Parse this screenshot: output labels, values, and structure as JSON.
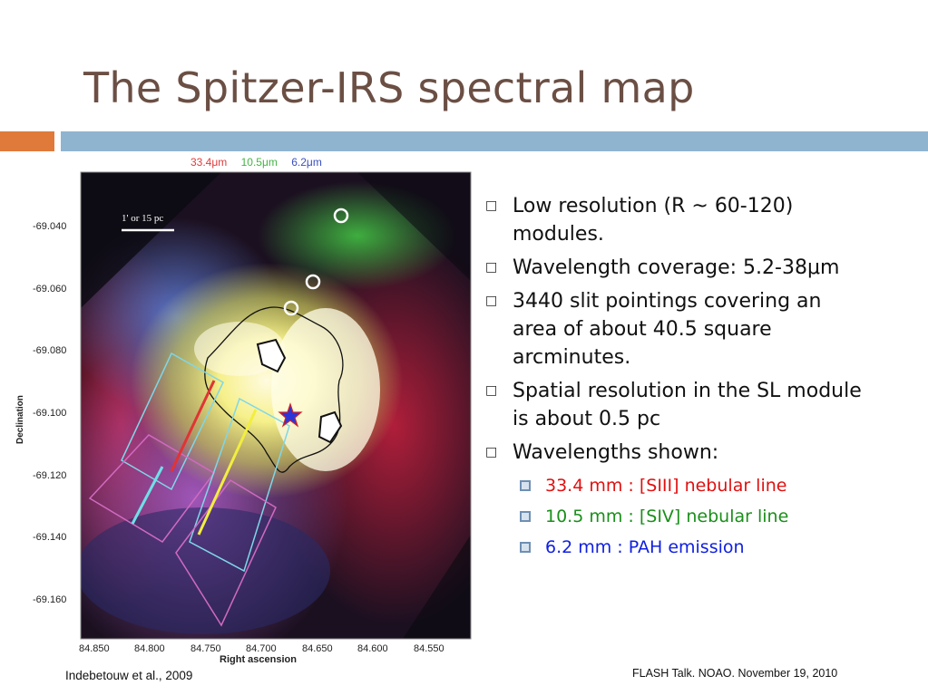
{
  "slide": {
    "title": "The Spitzer-IRS spectral map",
    "citation": "Indebetouw et al., 2009",
    "footer": "FLASH Talk. NOAO. November 19, 2010"
  },
  "figure": {
    "legend": [
      {
        "label": "33.4μm",
        "color": "#e23b3b"
      },
      {
        "label": "10.5μm",
        "color": "#44b444"
      },
      {
        "label": "6.2μm",
        "color": "#3a4fc0"
      }
    ],
    "scale_bar_label": "1' or 15 pc",
    "y_axis_label": "Declination",
    "x_axis_label": "Right ascension",
    "y_ticks": [
      "-69.040",
      "-69.060",
      "-69.080",
      "-69.100",
      "-69.120",
      "-69.140",
      "-69.160"
    ],
    "x_ticks": [
      "84.850",
      "84.800",
      "84.750",
      "84.700",
      "84.650",
      "84.600",
      "84.550"
    ]
  },
  "bullets": [
    {
      "text": "Low resolution (R ~ 60-120) modules."
    },
    {
      "text": "Wavelength coverage: 5.2-38μm"
    },
    {
      "text": "3440 slit pointings covering an area of about 40.5 square arcminutes."
    },
    {
      "text": "Spatial resolution in the SL module is about 0.5 pc"
    },
    {
      "text": "Wavelengths shown:"
    }
  ],
  "sub_bullets": [
    {
      "text": "33.4 mm : [SIII] nebular line",
      "color": "#e01010"
    },
    {
      "text": "10.5 mm : [SIV] nebular line",
      "color": "#1a8f1a"
    },
    {
      "text": "6.2 mm : PAH emission",
      "color": "#1020e0"
    }
  ]
}
